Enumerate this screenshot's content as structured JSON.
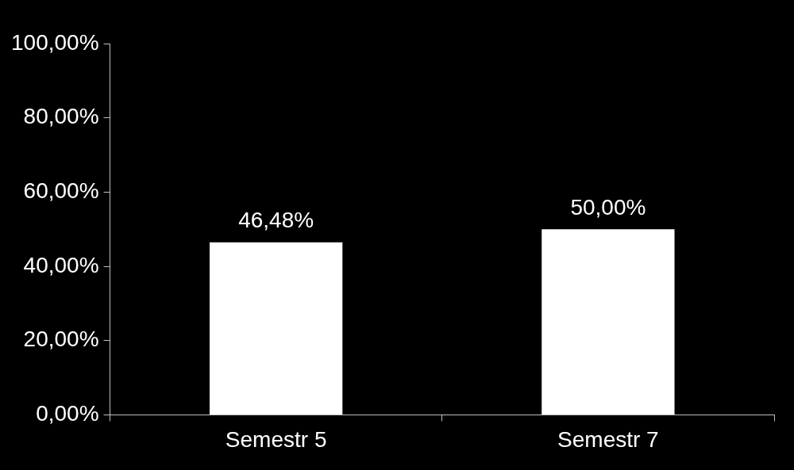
{
  "chart_data": {
    "type": "bar",
    "categories": [
      "Semestr 5",
      "Semestr 7"
    ],
    "values": [
      46.48,
      50
    ],
    "value_labels": [
      "46,48%",
      "50,00%"
    ],
    "data_labels": true,
    "color": "#ffffff",
    "ylim": [
      0,
      100
    ],
    "yticks": [
      {
        "value": 0,
        "label": "0,00%"
      },
      {
        "value": 20,
        "label": "20,00%"
      },
      {
        "value": 40,
        "label": "40,00%"
      },
      {
        "value": 60,
        "label": "60,00%"
      },
      {
        "value": 80,
        "label": "80,00%"
      },
      {
        "value": 100,
        "label": "100,00%"
      }
    ],
    "grid": false
  }
}
